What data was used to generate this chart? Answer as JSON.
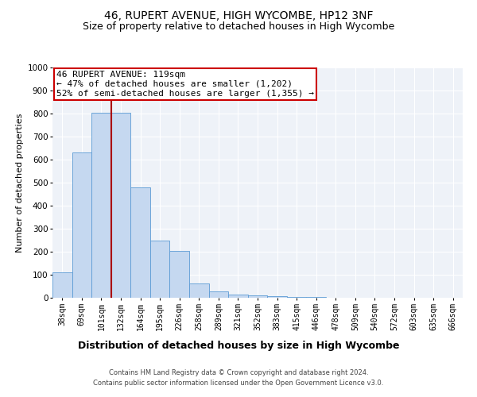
{
  "title1": "46, RUPERT AVENUE, HIGH WYCOMBE, HP12 3NF",
  "title2": "Size of property relative to detached houses in High Wycombe",
  "xlabel": "Distribution of detached houses by size in High Wycombe",
  "ylabel": "Number of detached properties",
  "bin_labels": [
    "38sqm",
    "69sqm",
    "101sqm",
    "132sqm",
    "164sqm",
    "195sqm",
    "226sqm",
    "258sqm",
    "289sqm",
    "321sqm",
    "352sqm",
    "383sqm",
    "415sqm",
    "446sqm",
    "478sqm",
    "509sqm",
    "540sqm",
    "572sqm",
    "603sqm",
    "635sqm",
    "666sqm"
  ],
  "bar_heights": [
    110,
    630,
    805,
    805,
    480,
    248,
    205,
    63,
    27,
    15,
    10,
    8,
    3,
    2,
    1,
    1,
    0,
    0,
    0,
    0,
    0
  ],
  "bar_color": "#c5d8f0",
  "bar_edgecolor": "#5b9bd5",
  "property_line_x": 2.5,
  "annotation_line1": "46 RUPERT AVENUE: 119sqm",
  "annotation_line2": "← 47% of detached houses are smaller (1,202)",
  "annotation_line3": "52% of semi-detached houses are larger (1,355) →",
  "annotation_box_color": "#ffffff",
  "annotation_box_edgecolor": "#cc0000",
  "redline_color": "#aa0000",
  "ylim": [
    0,
    1000
  ],
  "yticks": [
    0,
    100,
    200,
    300,
    400,
    500,
    600,
    700,
    800,
    900,
    1000
  ],
  "background_color": "#eef2f8",
  "grid_color": "#ffffff",
  "footer1": "Contains HM Land Registry data © Crown copyright and database right 2024.",
  "footer2": "Contains public sector information licensed under the Open Government Licence v3.0.",
  "title1_fontsize": 10,
  "title2_fontsize": 9,
  "xlabel_fontsize": 9,
  "ylabel_fontsize": 8,
  "tick_fontsize": 7,
  "annotation_fontsize": 8,
  "footer_fontsize": 6
}
